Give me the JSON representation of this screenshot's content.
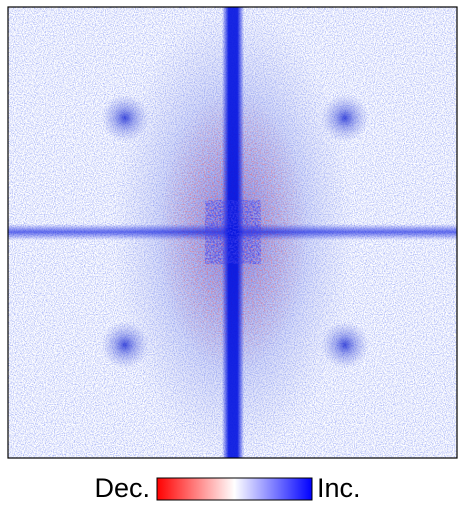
{
  "colorbar": {
    "low_label": "Dec.",
    "high_label": "Inc."
  }
}
